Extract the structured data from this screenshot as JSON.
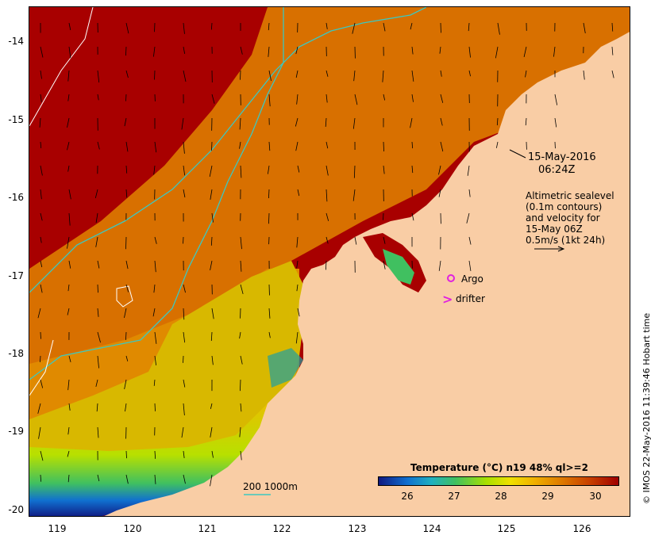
{
  "map": {
    "x_ticks": [
      "119",
      "120",
      "121",
      "122",
      "123",
      "124",
      "125",
      "126"
    ],
    "y_ticks": [
      "-14",
      "-15",
      "-16",
      "-17",
      "-18",
      "-19",
      "-20"
    ],
    "date_label": "15-May-2016",
    "time_label": "06:24Z",
    "altimetry_lines": [
      "Altimetric sealevel",
      "(0.1m contours)",
      "and velocity for",
      "15-May 06Z",
      "0.5m/s (1kt 24h)"
    ],
    "legend_argo": "Argo",
    "legend_drifter": "drifter",
    "depth_scale_label": "200  1000m",
    "colorbar_title": "Temperature (°C) n19 48% ql>=2",
    "colorbar_ticks": [
      "26",
      "27",
      "28",
      "29",
      "30"
    ],
    "copyright": "© IMOS 22-May-2016 11:39:46 Hobart time",
    "colors": {
      "land": "#f9cda5",
      "warm": "#a80000",
      "cool": "#0a2ca0",
      "contour": "#3cc8c0",
      "argo": "#e020e0"
    }
  }
}
